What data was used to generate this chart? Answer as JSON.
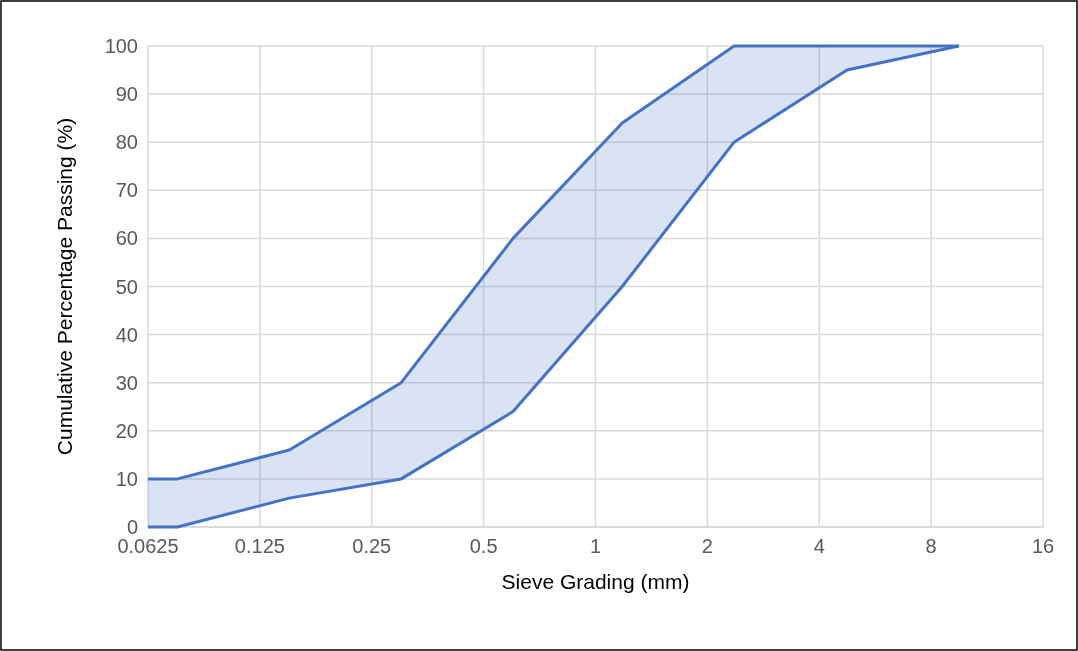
{
  "chart_data": {
    "type": "line",
    "xlabel": "Sieve Grading (mm)",
    "ylabel": "Cumulative Percentage Passing (%)",
    "log": "x",
    "xlim": [
      0.0625,
      16
    ],
    "xticks": [
      0.0625,
      0.125,
      0.25,
      0.5,
      1,
      2,
      4,
      8,
      16
    ],
    "ylim": [
      0,
      100
    ],
    "yticks": [
      0,
      10,
      20,
      30,
      40,
      50,
      60,
      70,
      80,
      90,
      100
    ],
    "grid": true,
    "marker": "none",
    "line_style": "solid",
    "series": [
      {
        "color": "#4472c4",
        "x": [
          0.0625,
          0.075,
          0.15,
          0.3,
          0.6,
          1.18,
          2.36,
          4.75,
          9.5
        ],
        "values": [
          10,
          10,
          16,
          30,
          60,
          84,
          100,
          100,
          100
        ],
        "lower": [
          0,
          0,
          6,
          10,
          24,
          50,
          80,
          95,
          100
        ],
        "upper": [
          10,
          10,
          16,
          30,
          60,
          84,
          100,
          100,
          100
        ]
      },
      {
        "color": "#4472c4",
        "x": [
          0.0625,
          0.075,
          0.15,
          0.3,
          0.6,
          1.18,
          2.36,
          4.75,
          9.5
        ],
        "values": [
          0,
          0,
          6,
          10,
          24,
          50,
          80,
          95,
          100
        ]
      }
    ]
  }
}
